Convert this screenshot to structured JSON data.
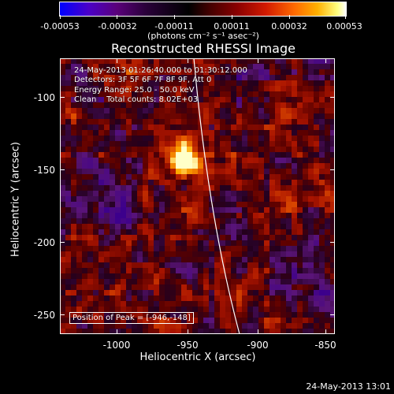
{
  "colorbar": {
    "tick_labels": [
      "-0.00053",
      "-0.00032",
      "-0.00011",
      "0.00011",
      "0.00032",
      "0.00053"
    ],
    "units_label": "(photons cm⁻² s⁻¹ asec⁻²)"
  },
  "title": "Reconstructed RHESSI Image",
  "info": {
    "time_range": "24-May-2013 01:26:40.000 to 01:30:12.000",
    "detectors": "Detectors: 3F 5F 6F 7F 8F 9F, Att 0",
    "energy_range": "Energy Range: 25.0 - 50.0 keV",
    "clean_counts": "Clean    Total counts: 8.02E+03"
  },
  "peak_position": "Position of Peak = [-946,-148]",
  "axes": {
    "x_title": "Heliocentric X (arcsec)",
    "y_title": "Heliocentric Y (arcsec)",
    "x_ticks": [
      "-1000",
      "-950",
      "-900",
      "-850"
    ],
    "y_ticks": [
      "-100",
      "-150",
      "-200",
      "-250"
    ],
    "x_range": [
      -1035,
      -840
    ],
    "y_range": [
      -85,
      -270
    ]
  },
  "timestamp": "24-May-2013 13:01",
  "colors": {
    "limb_line": "#ffffff",
    "frame": "#ffffff",
    "background": "#000000"
  }
}
